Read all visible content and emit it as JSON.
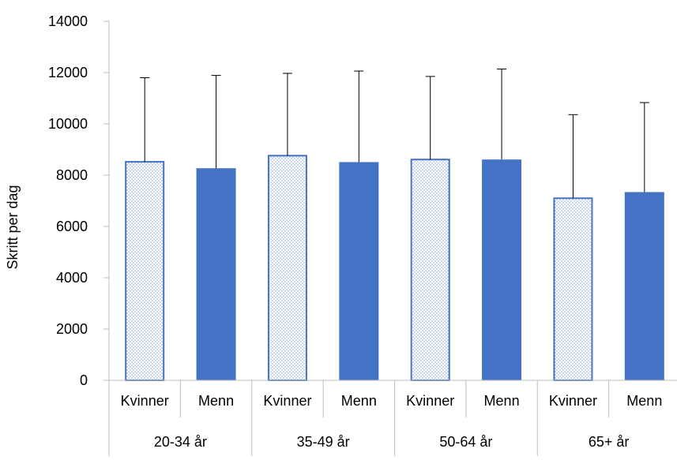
{
  "chart_data": {
    "type": "bar",
    "title": "",
    "xlabel": "",
    "ylabel": "Skritt per dag",
    "ylim": [
      0,
      14000
    ],
    "y_ticks": [
      0,
      2000,
      4000,
      6000,
      8000,
      10000,
      12000,
      14000
    ],
    "grid": false,
    "legend": "none",
    "groups": [
      "20-34 år",
      "35-49 år",
      "50-64 år",
      "65+ år"
    ],
    "categories": [
      "Kvinner",
      "Menn",
      "Kvinner",
      "Menn",
      "Kvinner",
      "Menn",
      "Kvinner",
      "Menn"
    ],
    "category_group": [
      0,
      0,
      1,
      1,
      2,
      2,
      3,
      3
    ],
    "values": [
      8520,
      8270,
      8760,
      8510,
      8610,
      8610,
      7100,
      7340
    ],
    "error_upper": [
      11800,
      11890,
      11970,
      12060,
      11850,
      12140,
      10360,
      10830
    ],
    "styles": {
      "Kvinner": "dotted-pattern",
      "Menn": "solid"
    },
    "colors": {
      "accent": "#4472C4",
      "pattern_dot": "#7f9fd6",
      "axis": "#bfbfbf",
      "error_bar": "#000000"
    }
  }
}
